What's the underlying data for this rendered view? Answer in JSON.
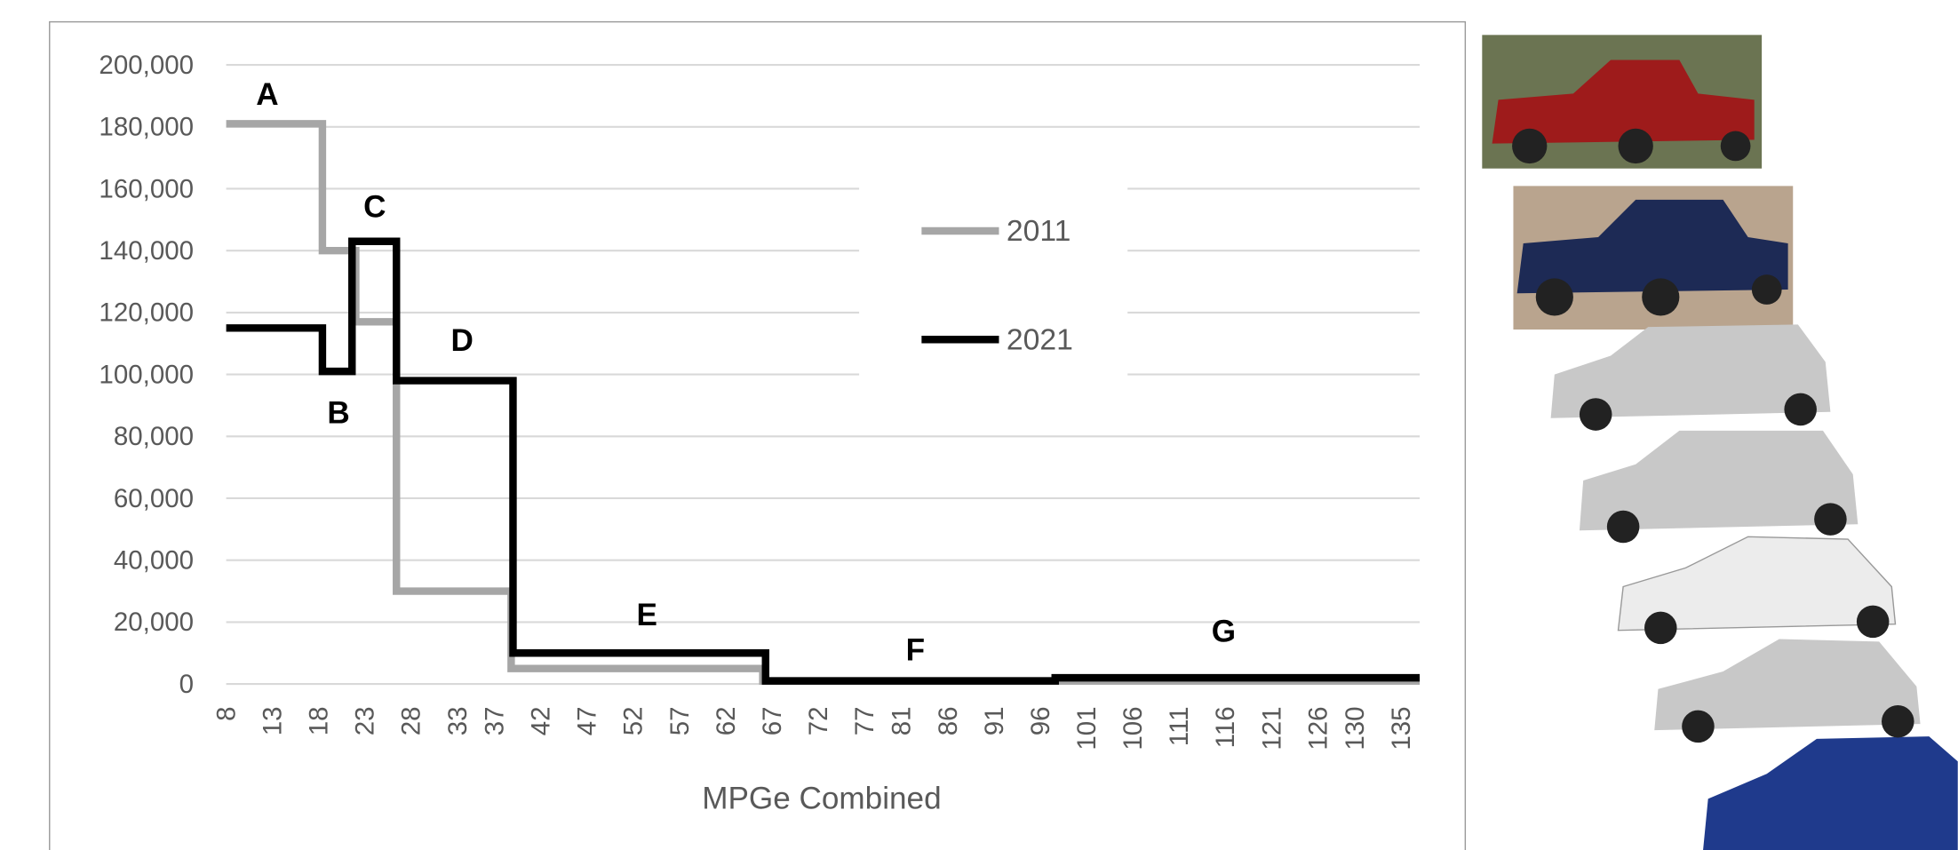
{
  "chart_data": {
    "type": "line",
    "x_label": "MPGe Combined",
    "xlim": [
      8,
      137
    ],
    "xticks": [
      8,
      13,
      18,
      23,
      28,
      33,
      37,
      42,
      47,
      52,
      57,
      62,
      67,
      72,
      77,
      81,
      86,
      91,
      96,
      101,
      106,
      111,
      116,
      121,
      126,
      130,
      135
    ],
    "ylim": [
      0,
      200000
    ],
    "yticks": [
      0,
      {
        "value": 20000,
        "label": "20,000"
      },
      {
        "value": 40000,
        "label": "40,000"
      },
      {
        "value": 60000,
        "label": "60,000"
      },
      {
        "value": 80000,
        "label": "80,000"
      },
      {
        "value": 100000,
        "label": "100,000"
      },
      {
        "value": 120000,
        "label": "120,000"
      },
      {
        "value": 140000,
        "label": "140,000"
      },
      {
        "value": 160000,
        "label": "160,000"
      },
      {
        "value": 180000,
        "label": "180,000"
      },
      {
        "value": 200000,
        "label": "200,000"
      }
    ],
    "grid": true,
    "legend": "center",
    "series": [
      {
        "name": "2011",
        "color": "#a6a6a6",
        "x": [
          8,
          18.4,
          18.4,
          22,
          22,
          26.4,
          26.4,
          38.8,
          38.8,
          66,
          66,
          137
        ],
        "values": [
          181000,
          181000,
          140000,
          140000,
          117000,
          117000,
          30000,
          30000,
          5000,
          5000,
          1000,
          1000
        ]
      },
      {
        "name": "2021",
        "color": "#000000",
        "x": [
          8,
          18.4,
          18.4,
          21.6,
          21.6,
          26.4,
          26.4,
          39,
          39,
          66.3,
          66.3,
          97.6,
          97.6,
          137
        ],
        "values": [
          115000,
          115000,
          101000,
          101000,
          143000,
          143000,
          98000,
          98000,
          10000,
          10000,
          1000,
          1000,
          2000,
          2000
        ]
      }
    ],
    "annotations": [
      "A",
      "B",
      "C",
      "D",
      "E",
      "F",
      "G"
    ]
  }
}
